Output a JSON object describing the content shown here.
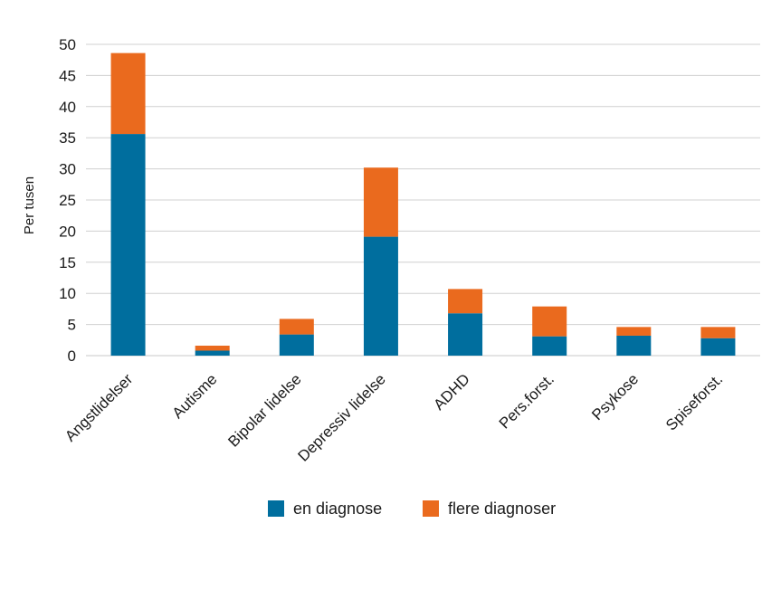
{
  "chart_data": {
    "type": "bar",
    "stacked": true,
    "title": "",
    "xlabel": "",
    "ylabel": "Per tusen",
    "ylim": [
      0,
      50
    ],
    "yticks": [
      0,
      5,
      10,
      15,
      20,
      25,
      30,
      35,
      40,
      45,
      50
    ],
    "grid": true,
    "legend_position": "bottom-center",
    "categories": [
      "Angstlidelser",
      "Autisme",
      "Bipolar lidelse",
      "Depressiv lidelse",
      "ADHD",
      "Pers.forst.",
      "Psykose",
      "Spiseforst."
    ],
    "series": [
      {
        "name": "en diagnose",
        "color": "#006e9e",
        "values": [
          35.6,
          0.8,
          3.4,
          19.1,
          6.8,
          3.1,
          3.2,
          2.8
        ]
      },
      {
        "name": "flere diagnoser",
        "color": "#ea6a1e",
        "values": [
          13.0,
          0.8,
          2.5,
          11.1,
          3.9,
          4.8,
          1.4,
          1.8
        ]
      }
    ]
  }
}
